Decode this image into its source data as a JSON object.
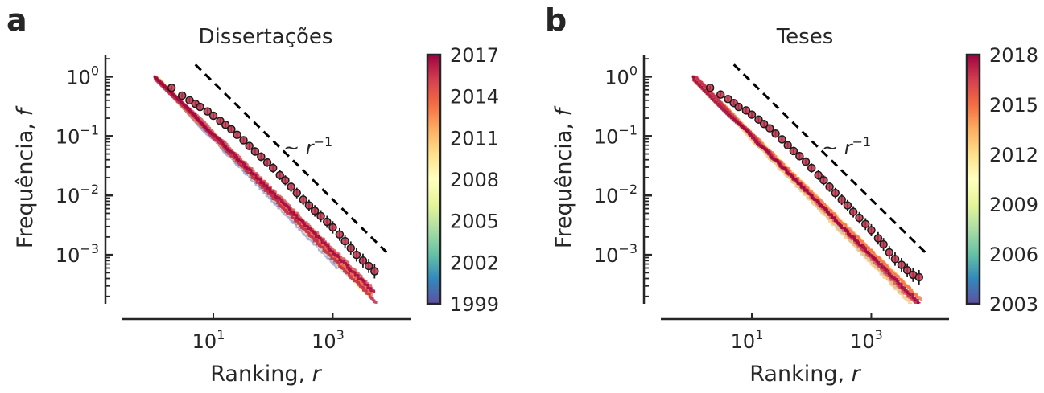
{
  "chart_data": [
    {
      "panel_letter": "a",
      "type": "line",
      "title": "Dissertações",
      "xlabel": "Ranking, r",
      "xlabel_text": "Ranking,",
      "xlabel_var": "r",
      "ylabel": "Frequência, f",
      "ylabel_text": "Frequência,",
      "ylabel_var": "f",
      "xscale": "log",
      "yscale": "log",
      "xlim": [
        0.3,
        20000
      ],
      "ylim": [
        0.00015,
        2.5
      ],
      "xticks": [
        {
          "value": 10,
          "base": "10",
          "exp": "1"
        },
        {
          "value": 1000,
          "base": "10",
          "exp": "3"
        }
      ],
      "yticks": [
        {
          "value": 1,
          "base": "10",
          "exp": "0"
        },
        {
          "value": 0.1,
          "base": "10",
          "exp": "−1"
        },
        {
          "value": 0.01,
          "base": "10",
          "exp": "−2"
        },
        {
          "value": 0.001,
          "base": "10",
          "exp": "−3"
        }
      ],
      "colorbar": {
        "min_year": 1999,
        "max_year": 2017,
        "ticks": [
          "2017",
          "2014",
          "2011",
          "2008",
          "2005",
          "2002",
          "1999"
        ],
        "colormap": "Spectral_r"
      },
      "reference_line": {
        "label_prefix": "~",
        "label_var": "r",
        "label_exp": "−1",
        "slope": -1,
        "x": [
          5,
          8000
        ],
        "y": [
          1.6,
          0.0011
        ]
      },
      "series_count": 19,
      "n_ranks": 5000,
      "mean_series": {
        "x": [
          2,
          3,
          4,
          5,
          6,
          8,
          10,
          13,
          16,
          20,
          25,
          32,
          40,
          50,
          63,
          80,
          100,
          130,
          160,
          200,
          250,
          320,
          400,
          500,
          630,
          800,
          1000,
          1300,
          1600,
          2000,
          2500,
          3200,
          4000,
          5000
        ],
        "y": [
          0.65,
          0.48,
          0.4,
          0.35,
          0.31,
          0.26,
          0.22,
          0.18,
          0.155,
          0.13,
          0.105,
          0.085,
          0.068,
          0.055,
          0.045,
          0.036,
          0.029,
          0.022,
          0.018,
          0.014,
          0.011,
          0.0085,
          0.0068,
          0.0055,
          0.0045,
          0.0036,
          0.0029,
          0.0022,
          0.0017,
          0.0013,
          0.001,
          0.0008,
          0.00065,
          0.00053
        ]
      }
    },
    {
      "panel_letter": "b",
      "type": "line",
      "title": "Teses",
      "xlabel": "Ranking, r",
      "xlabel_text": "Ranking,",
      "xlabel_var": "r",
      "ylabel": "Frequência, f",
      "ylabel_text": "Frequência,",
      "ylabel_var": "f",
      "xscale": "log",
      "yscale": "log",
      "xlim": [
        0.3,
        20000
      ],
      "ylim": [
        0.00015,
        2.5
      ],
      "xticks": [
        {
          "value": 10,
          "base": "10",
          "exp": "1"
        },
        {
          "value": 1000,
          "base": "10",
          "exp": "3"
        }
      ],
      "yticks": [
        {
          "value": 1,
          "base": "10",
          "exp": "0"
        },
        {
          "value": 0.1,
          "base": "10",
          "exp": "−1"
        },
        {
          "value": 0.01,
          "base": "10",
          "exp": "−2"
        },
        {
          "value": 0.001,
          "base": "10",
          "exp": "−3"
        }
      ],
      "colorbar": {
        "min_year": 2003,
        "max_year": 2018,
        "ticks": [
          "2018",
          "2015",
          "2012",
          "2009",
          "2006",
          "2003"
        ],
        "colormap": "Spectral_r"
      },
      "reference_line": {
        "label_prefix": "~",
        "label_var": "r",
        "label_exp": "−1",
        "slope": -1,
        "x": [
          5,
          8000
        ],
        "y": [
          1.6,
          0.0011
        ]
      },
      "series_count": 16,
      "n_ranks": 7000,
      "mean_series": {
        "x": [
          2,
          3,
          4,
          5,
          6,
          8,
          10,
          13,
          16,
          20,
          25,
          32,
          40,
          50,
          63,
          80,
          100,
          130,
          160,
          200,
          250,
          320,
          400,
          500,
          630,
          800,
          1000,
          1300,
          1600,
          2000,
          2500,
          3200,
          4000,
          5000,
          6300
        ],
        "y": [
          0.65,
          0.5,
          0.42,
          0.36,
          0.31,
          0.27,
          0.23,
          0.19,
          0.16,
          0.135,
          0.11,
          0.088,
          0.07,
          0.056,
          0.046,
          0.037,
          0.029,
          0.022,
          0.018,
          0.014,
          0.011,
          0.0085,
          0.0068,
          0.0053,
          0.0042,
          0.0033,
          0.0026,
          0.0019,
          0.0015,
          0.0011,
          0.00085,
          0.00068,
          0.00055,
          0.00046,
          0.00042
        ]
      }
    }
  ]
}
